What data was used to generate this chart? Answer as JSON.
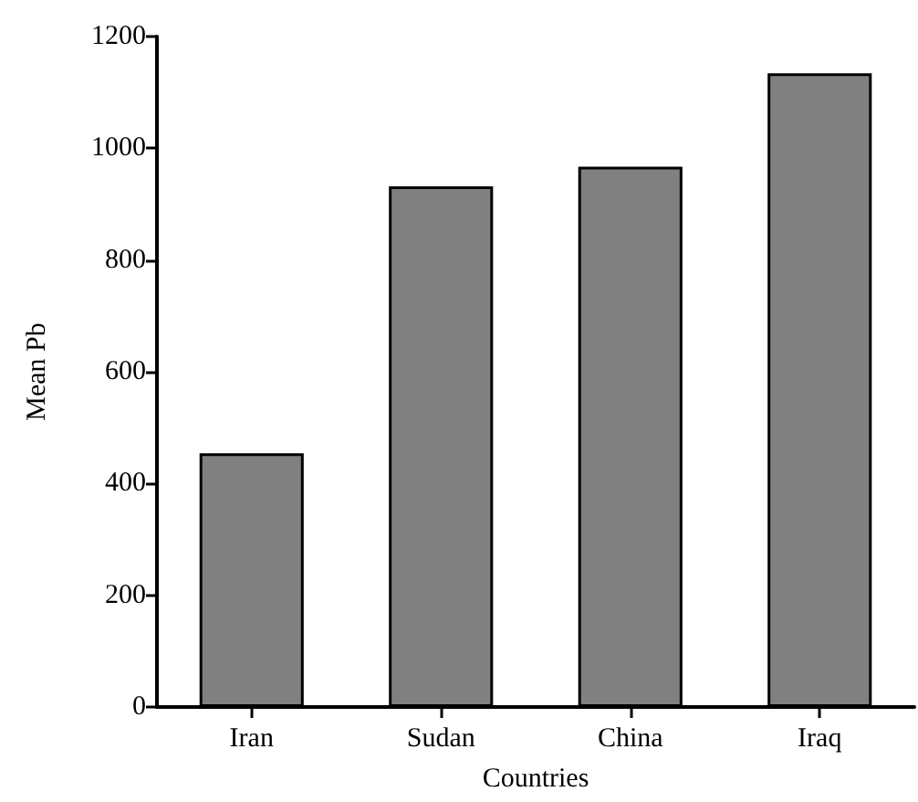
{
  "chart_data": {
    "type": "bar",
    "xlabel": "Countries",
    "ylabel": "Mean Pb",
    "categories": [
      "Iran",
      "Sudan",
      "China",
      "Iraq"
    ],
    "values": [
      454,
      932,
      967,
      1134
    ],
    "color": "#808080",
    "ylim": [
      0,
      1200
    ],
    "yticks": [
      0,
      200,
      400,
      600,
      800,
      1000,
      1200
    ],
    "grid": false
  }
}
